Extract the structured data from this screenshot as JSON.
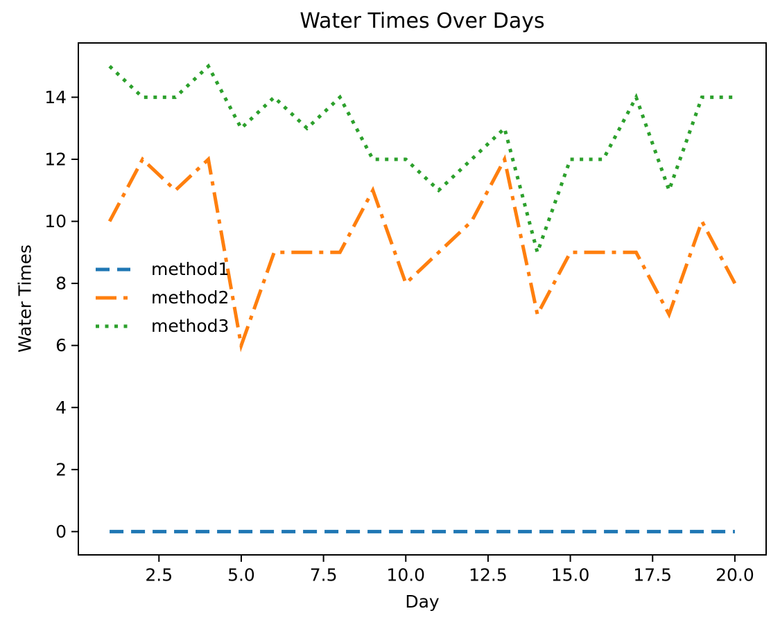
{
  "chart_data": {
    "type": "line",
    "title": "Water Times Over Days",
    "xlabel": "Day",
    "ylabel": "Water Times",
    "x": [
      1,
      2,
      3,
      4,
      5,
      6,
      7,
      8,
      9,
      10,
      11,
      12,
      13,
      14,
      15,
      16,
      17,
      18,
      19,
      20
    ],
    "series": [
      {
        "name": "method1",
        "color": "#1f77b4",
        "dash": "dashed",
        "values": [
          0,
          0,
          0,
          0,
          0,
          0,
          0,
          0,
          0,
          0,
          0,
          0,
          0,
          0,
          0,
          0,
          0,
          0,
          0,
          0
        ]
      },
      {
        "name": "method2",
        "color": "#ff7f0e",
        "dash": "dashdot",
        "values": [
          10,
          12,
          11,
          12,
          6,
          9,
          9,
          9,
          11,
          8,
          9,
          10,
          12,
          7,
          9,
          9,
          9,
          7,
          10,
          8
        ]
      },
      {
        "name": "method3",
        "color": "#2ca02c",
        "dash": "dotted",
        "values": [
          15,
          14,
          14,
          15,
          13,
          14,
          13,
          14,
          12,
          12,
          11,
          12,
          13,
          9,
          12,
          12,
          14,
          11,
          14,
          14
        ]
      }
    ],
    "xlim": [
      0.05,
      20.95
    ],
    "ylim": [
      -0.75,
      15.75
    ],
    "xticks": [
      "2.5",
      "5.0",
      "7.5",
      "10.0",
      "12.5",
      "15.0",
      "17.5",
      "20.0"
    ],
    "xtick_values": [
      2.5,
      5,
      7.5,
      10,
      12.5,
      15,
      17.5,
      20
    ],
    "yticks": [
      "0",
      "2",
      "4",
      "6",
      "8",
      "10",
      "12",
      "14"
    ],
    "ytick_values": [
      0,
      2,
      4,
      6,
      8,
      10,
      12,
      14
    ],
    "legend": {
      "position": "center-left",
      "frame": false,
      "labels": [
        "method1",
        "method2",
        "method3"
      ]
    },
    "grid": false,
    "colors": {
      "background": "#ffffff",
      "axis": "#000000",
      "text": "#000000"
    }
  }
}
